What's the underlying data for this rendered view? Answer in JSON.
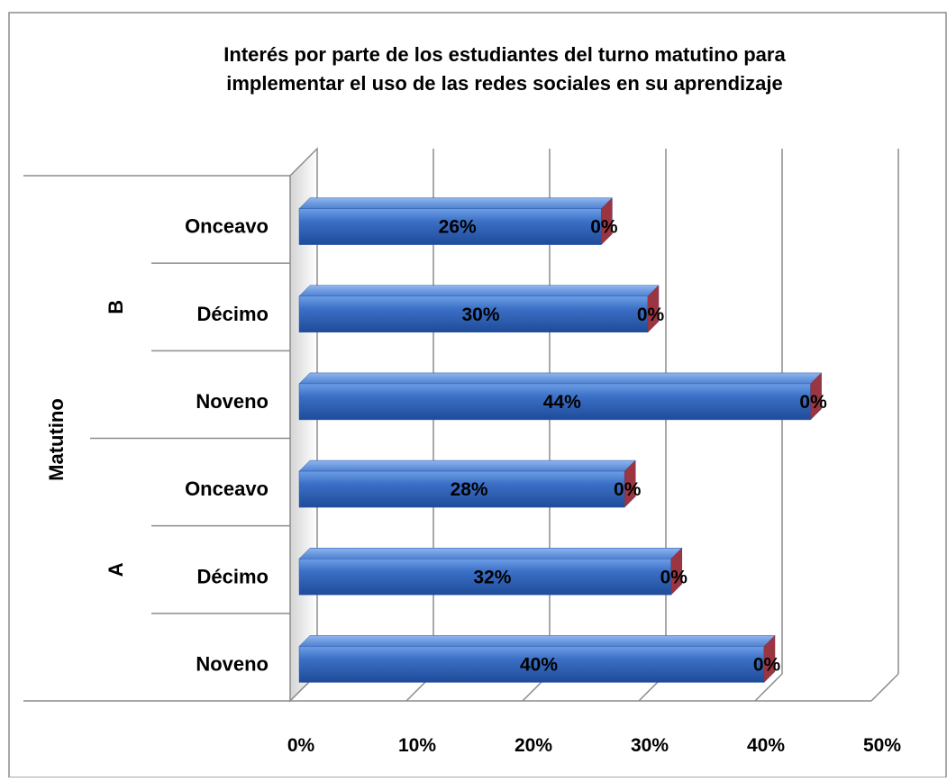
{
  "chart_data": {
    "type": "bar",
    "orientation": "horizontal",
    "three_d": true,
    "title_lines": [
      "Interés por parte de los estudiantes del turno matutino para",
      "implementar el uso de las redes sociales en su aprendizaje"
    ],
    "y_group_outer": "Matutino",
    "categories": [
      {
        "group": "A",
        "label": "Noveno"
      },
      {
        "group": "A",
        "label": "Décimo"
      },
      {
        "group": "A",
        "label": "Onceavo"
      },
      {
        "group": "B",
        "label": "Noveno"
      },
      {
        "group": "B",
        "label": "Décimo"
      },
      {
        "group": "B",
        "label": "Onceavo"
      }
    ],
    "groups": [
      "A",
      "B"
    ],
    "series": [
      {
        "values": [
          40,
          32,
          28,
          44,
          30,
          26
        ],
        "labels": [
          "40%",
          "32%",
          "28%",
          "44%",
          "30%",
          "26%"
        ],
        "color": "#3a6fc4"
      },
      {
        "values": [
          0,
          0,
          0,
          0,
          0,
          0
        ],
        "labels": [
          "0%",
          "0%",
          "0%",
          "0%",
          "0%",
          "0%"
        ],
        "color": "#b03030"
      }
    ],
    "xlim": [
      0,
      50
    ],
    "x_ticks": [
      "0%",
      "10%",
      "20%",
      "30%",
      "40%",
      "50%"
    ],
    "grid": true,
    "legend": "none"
  }
}
